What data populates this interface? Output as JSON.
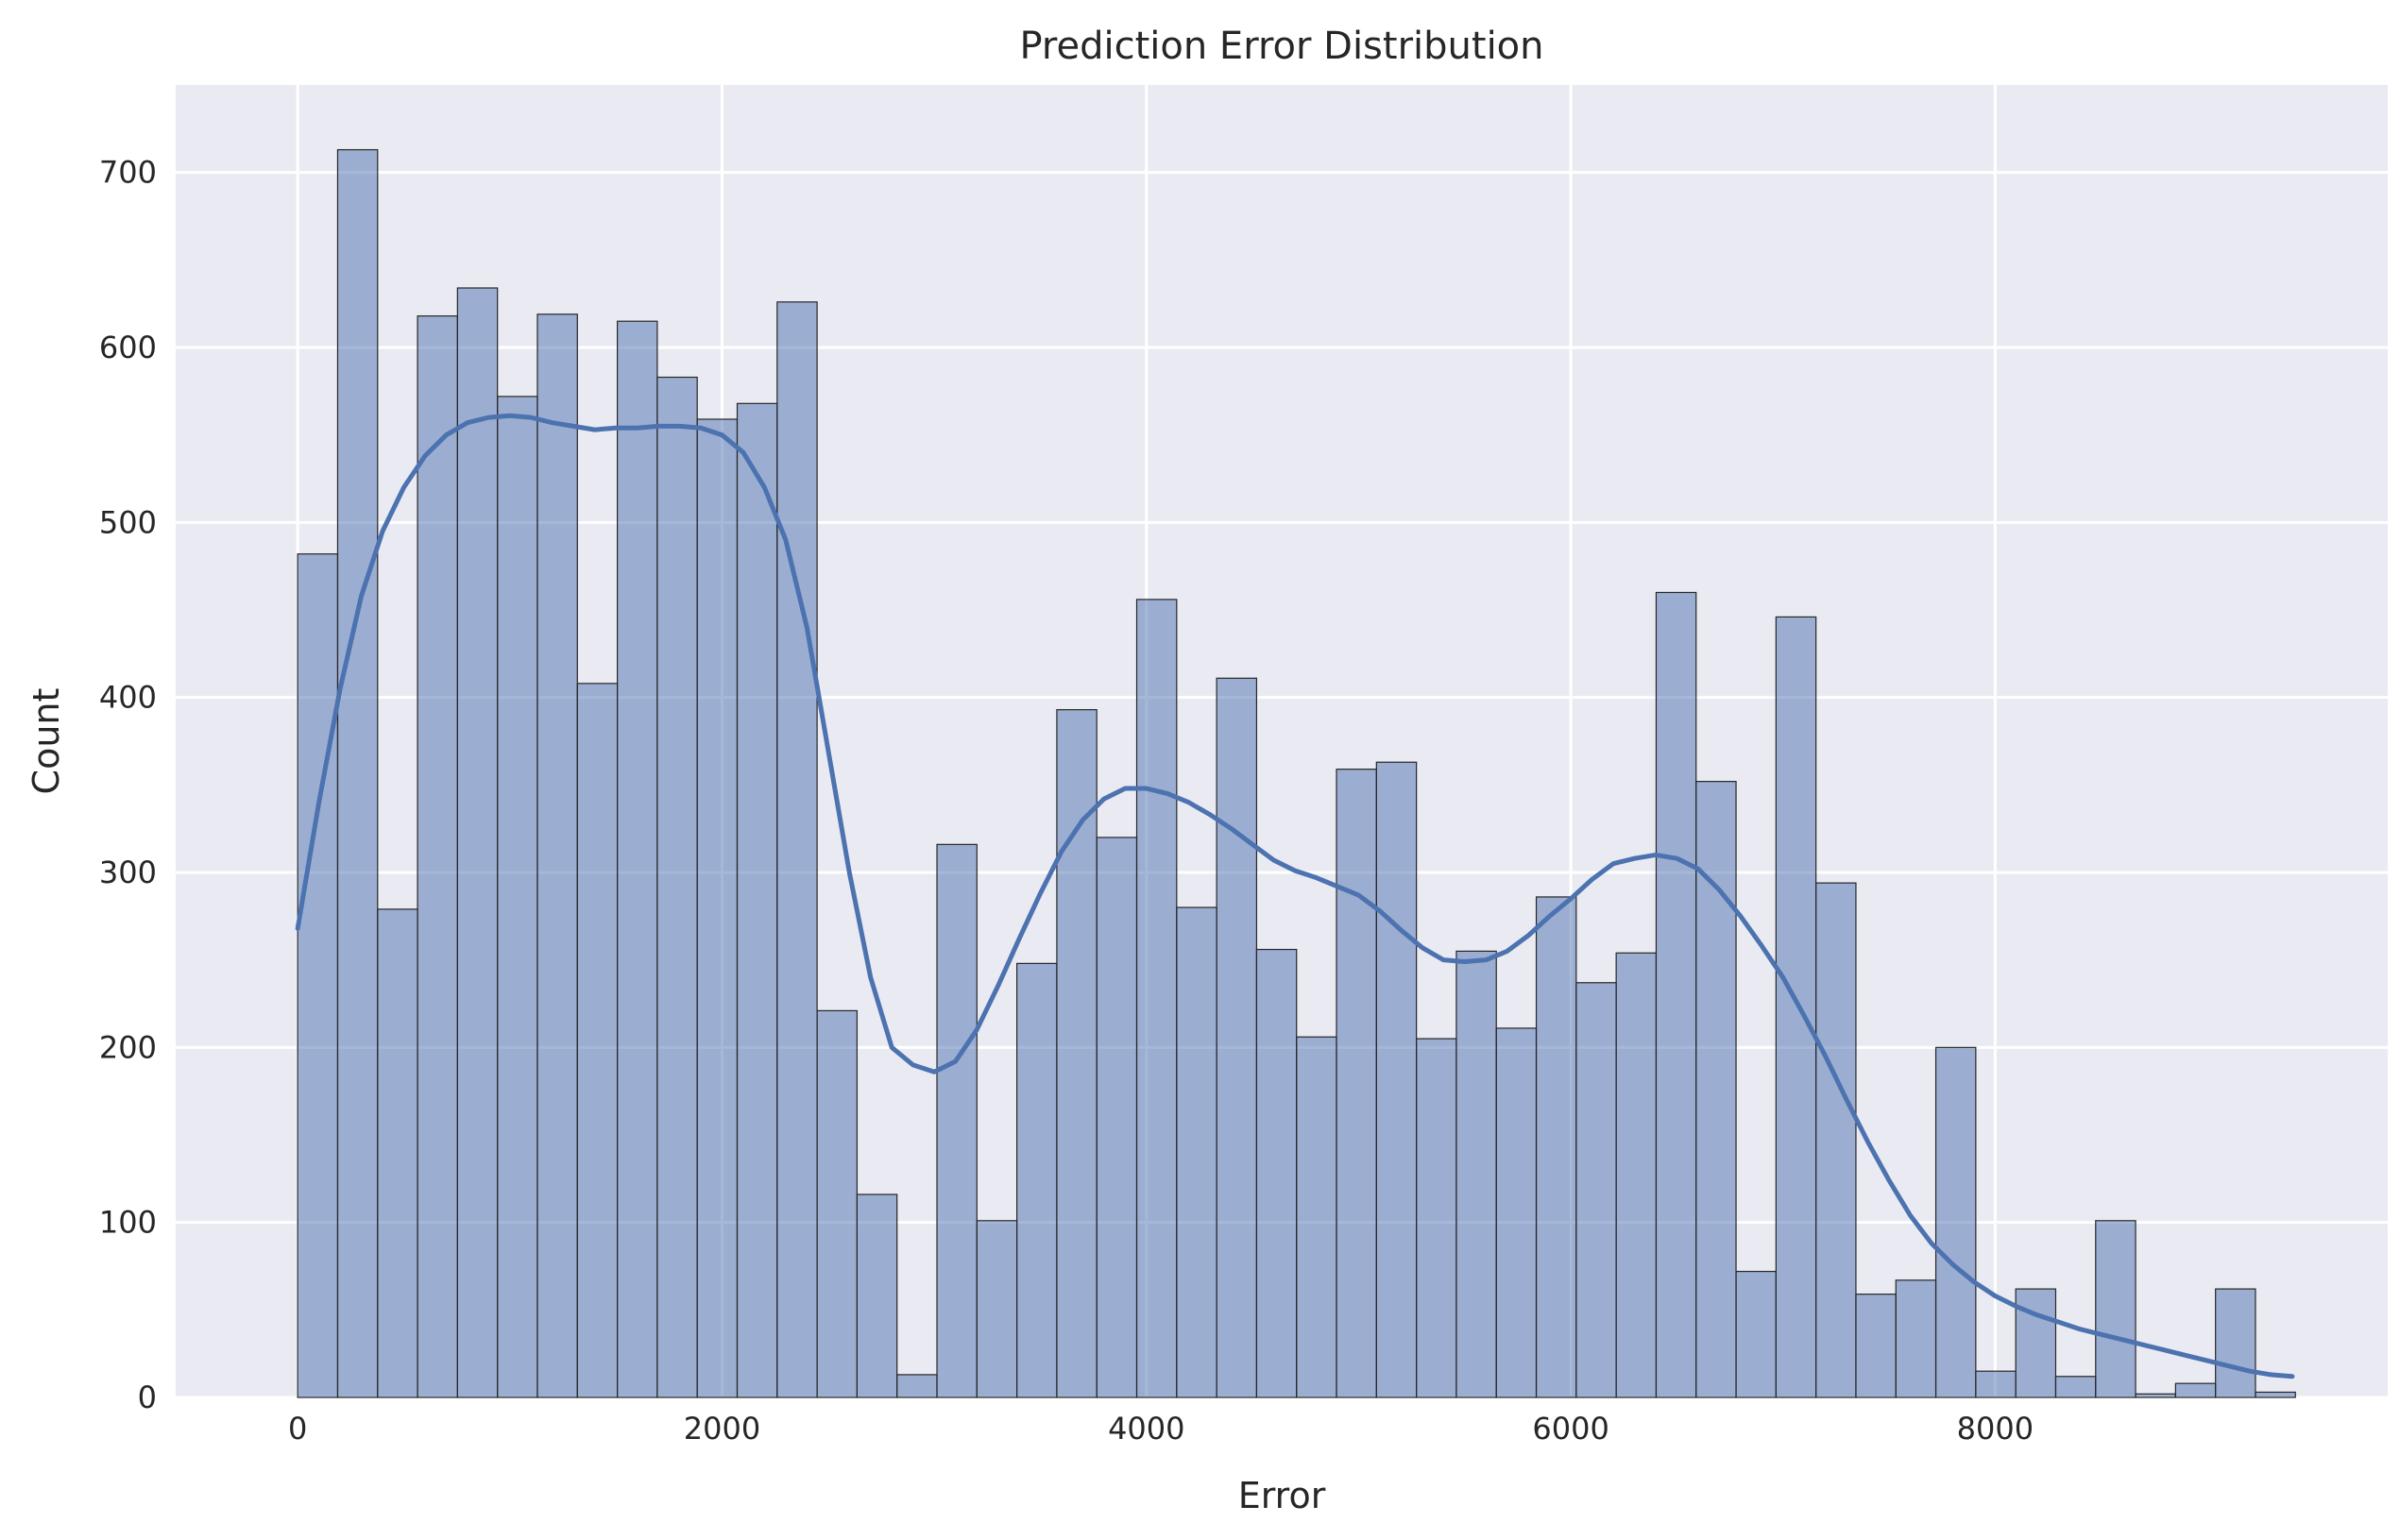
{
  "chart_data": {
    "type": "bar",
    "subtype": "histogram",
    "title": "Prediction Error Distribution",
    "xlabel": "Error",
    "ylabel": "Count",
    "xlim": [
      -575,
      9850
    ],
    "ylim": [
      0,
      750
    ],
    "xticks": [
      0,
      2000,
      4000,
      6000,
      8000
    ],
    "yticks": [
      0,
      100,
      200,
      300,
      400,
      500,
      600,
      700
    ],
    "grid": true,
    "bin_start": 0,
    "bin_width": 188.3,
    "counts": [
      482,
      713,
      279,
      618,
      634,
      572,
      619,
      408,
      615,
      583,
      559,
      568,
      626,
      221,
      116,
      13,
      316,
      101,
      248,
      393,
      320,
      456,
      280,
      411,
      256,
      206,
      359,
      363,
      205,
      255,
      211,
      286,
      237,
      254,
      460,
      352,
      72,
      446,
      294,
      59,
      67,
      200,
      15,
      62,
      12,
      101,
      2,
      8,
      62,
      3
    ],
    "kde": {
      "x": [
        0,
        100,
        200,
        300,
        400,
        500,
        600,
        700,
        800,
        900,
        1000,
        1100,
        1200,
        1300,
        1400,
        1500,
        1600,
        1700,
        1800,
        1900,
        2000,
        2100,
        2200,
        2300,
        2400,
        2500,
        2600,
        2700,
        2800,
        2900,
        3000,
        3100,
        3200,
        3300,
        3400,
        3500,
        3600,
        3700,
        3800,
        3900,
        4000,
        4100,
        4200,
        4300,
        4400,
        4500,
        4600,
        4700,
        4800,
        4900,
        5000,
        5100,
        5200,
        5300,
        5400,
        5500,
        5600,
        5700,
        5800,
        5900,
        6000,
        6100,
        6200,
        6300,
        6400,
        6500,
        6600,
        6700,
        6800,
        6900,
        7000,
        7100,
        7200,
        7300,
        7400,
        7500,
        7600,
        7700,
        7800,
        7900,
        8000,
        8100,
        8200,
        8300,
        8400,
        8500,
        8600,
        8700,
        8800,
        8900,
        9000,
        9100,
        9200,
        9300,
        9400
      ],
      "y": [
        268,
        340,
        405,
        458,
        495,
        520,
        538,
        550,
        557,
        560,
        561,
        560,
        557,
        555,
        553,
        554,
        554,
        555,
        555,
        554,
        550,
        540,
        520,
        490,
        440,
        370,
        300,
        240,
        200,
        190,
        186,
        192,
        210,
        235,
        262,
        288,
        312,
        330,
        342,
        348,
        348,
        345,
        340,
        333,
        325,
        316,
        307,
        301,
        297,
        292,
        287,
        278,
        267,
        257,
        250,
        249,
        250,
        255,
        264,
        275,
        285,
        296,
        305,
        308,
        310,
        308,
        302,
        290,
        275,
        258,
        240,
        218,
        195,
        170,
        146,
        124,
        104,
        88,
        76,
        66,
        58,
        52,
        47,
        43,
        39,
        36,
        33,
        30,
        27,
        24,
        21,
        18,
        15,
        13,
        12
      ]
    }
  }
}
